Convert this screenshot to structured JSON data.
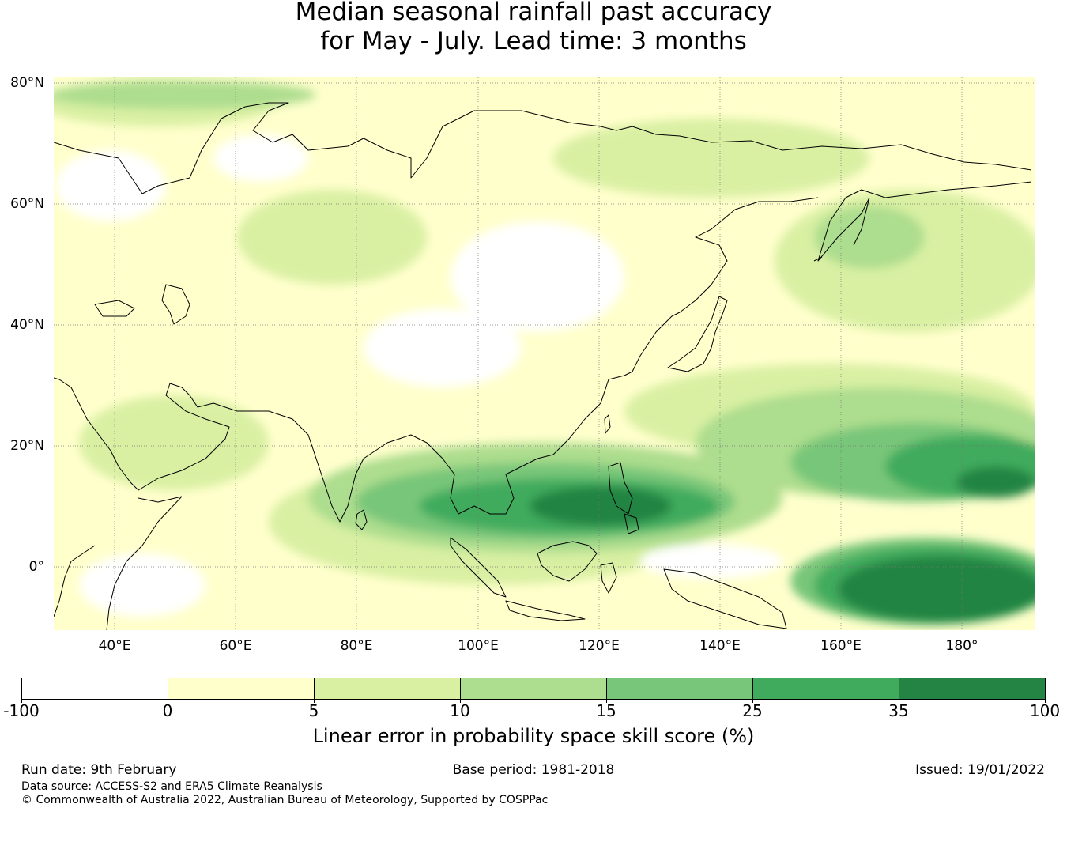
{
  "title": {
    "line1": "Median seasonal rainfall past accuracy",
    "line2": "for May - July. Lead time: 3 months"
  },
  "map": {
    "region": "Asia, Indian Ocean and western Pacific",
    "extent": {
      "lon_min": 30,
      "lon_max": 192,
      "lat_min": -10,
      "lat_max": 80
    },
    "lat_labels": [
      "80°N",
      "60°N",
      "40°N",
      "20°N",
      "0°"
    ],
    "lat_values": [
      80,
      60,
      40,
      20,
      0
    ],
    "lon_labels": [
      "40°E",
      "60°E",
      "80°E",
      "100°E",
      "120°E",
      "140°E",
      "160°E",
      "180°"
    ],
    "lon_values": [
      40,
      60,
      80,
      100,
      120,
      140,
      160,
      180
    ]
  },
  "colorbar": {
    "ticks": [
      "-100",
      "0",
      "5",
      "10",
      "15",
      "25",
      "35",
      "100"
    ],
    "colors": [
      "#ffffff",
      "#ffffcc",
      "#d9f0a3",
      "#addd8e",
      "#78c679",
      "#41ab5d",
      "#238443"
    ],
    "label": "Linear error in probability space skill score (%)"
  },
  "footer": {
    "run_date": "Run date: 9th February",
    "base_period": "Base period: 1981-2018",
    "issued": "Issued: 19/01/2022",
    "data_source": "Data source: ACCESS-S2 and ERA5 Climate Reanalysis",
    "copyright": "© Commonwealth of Australia 2022, Australian Bureau of Meteorology, Supported by COSPPac"
  }
}
